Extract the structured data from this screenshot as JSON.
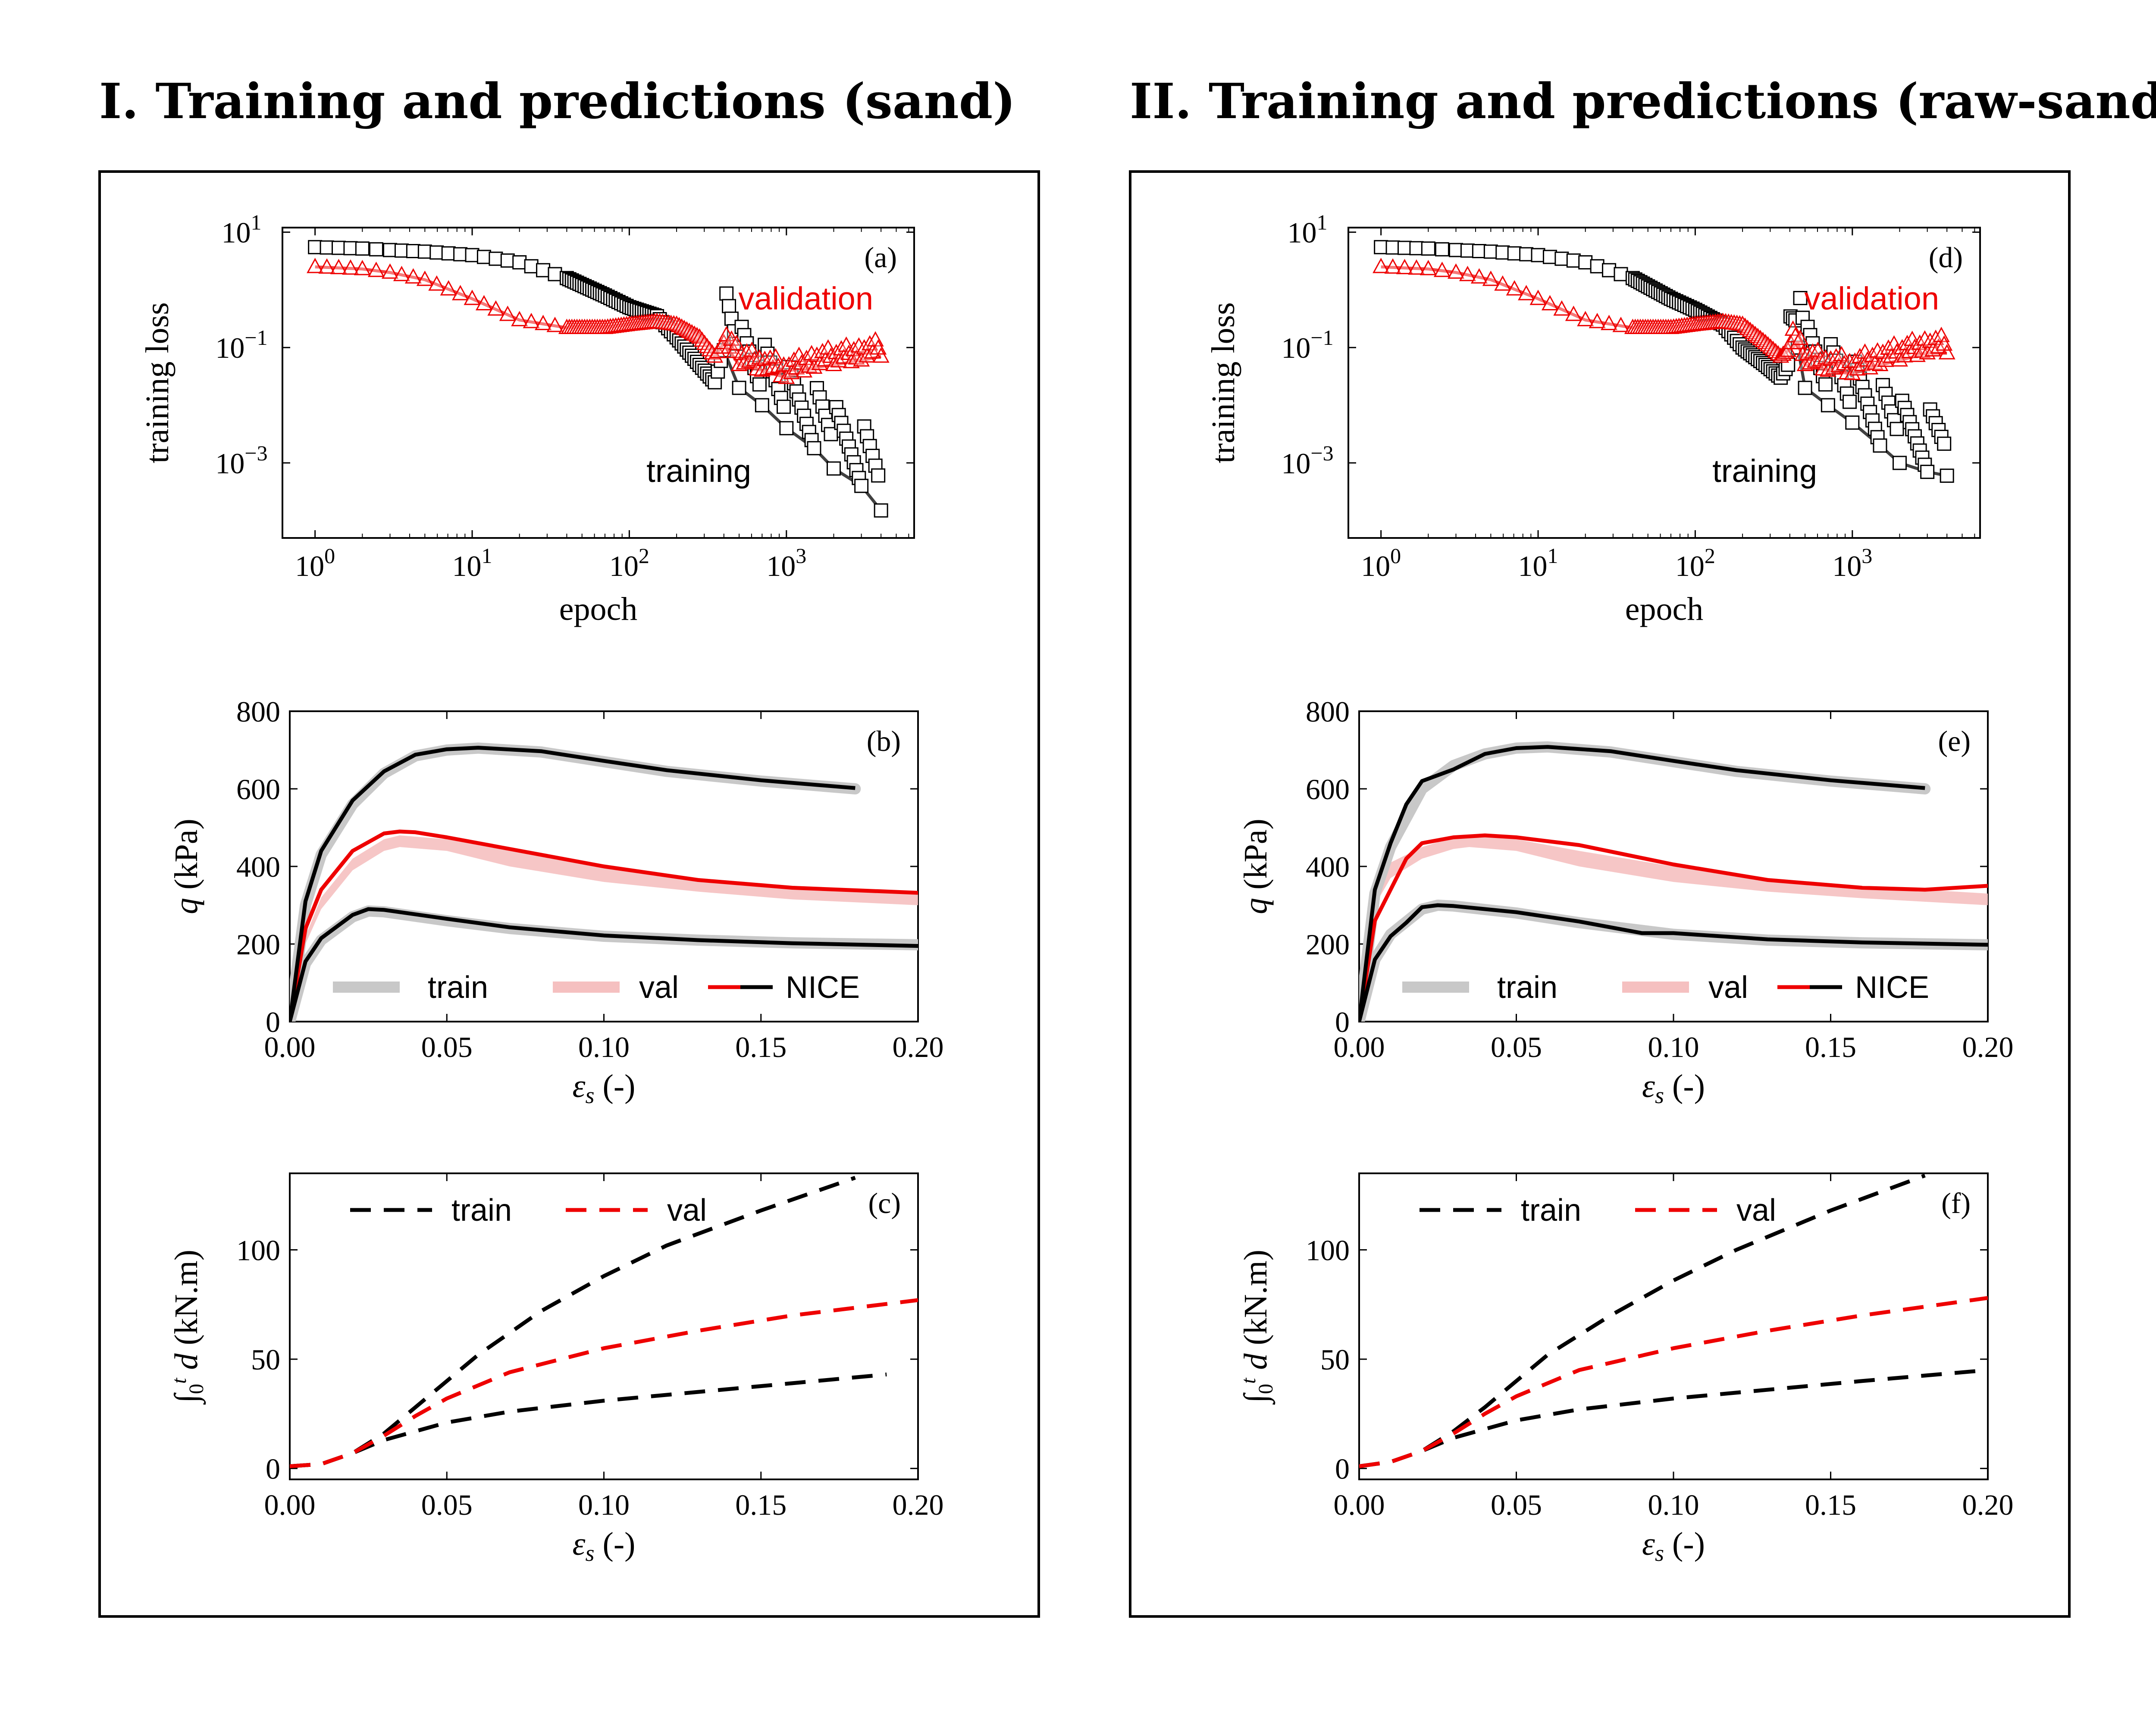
{
  "panels": [
    {
      "title": "I. Training and predictions (sand)"
    },
    {
      "title": "II. Training and predictions (raw-sand)"
    }
  ],
  "colors": {
    "black": "#000000",
    "red": "#ee0000",
    "gray_band": "#c8c8c8",
    "pink_band": "#f5c0c0"
  },
  "chart_data": [
    {
      "id": "a",
      "type": "line",
      "panel_label": "(a)",
      "xlabel": "epoch",
      "ylabel": "training loss",
      "xscale": "log",
      "yscale": "log",
      "xlim": [
        0.62,
        6500
      ],
      "ylim": [
        5e-05,
        12
      ],
      "x_ticks": [
        1,
        10,
        100,
        1000
      ],
      "x_tick_labels": [
        "10^0",
        "10^1",
        "10^2",
        "10^3"
      ],
      "y_ticks": [
        10,
        0.1,
        0.001
      ],
      "y_tick_labels": [
        "10^1",
        "10^-1",
        "10^-3"
      ],
      "annotations": {
        "validation": "validation",
        "training": "training"
      },
      "series": [
        {
          "key": "training",
          "color": "#000000",
          "marker": "square",
          "x": [
            1,
            2,
            3,
            5,
            10,
            20,
            40,
            70,
            100,
            150,
            200,
            280,
            350,
            400,
            500,
            700,
            1000,
            1500,
            2000,
            3000,
            4000
          ],
          "y": [
            5.5,
            5.2,
            4.9,
            4.6,
            4.0,
            3.0,
            1.6,
            0.8,
            0.5,
            0.35,
            0.15,
            0.05,
            0.025,
            0.09,
            0.02,
            0.01,
            0.004,
            0.0018,
            0.0008,
            0.0004,
            0.00015
          ]
        },
        {
          "key": "validation",
          "color": "#ee0000",
          "marker": "triangle",
          "x": [
            1,
            2,
            3,
            5,
            10,
            20,
            40,
            70,
            100,
            150,
            200,
            280,
            350,
            400,
            500,
            700,
            1000,
            1500,
            2000,
            3000,
            4000
          ],
          "y": [
            2.5,
            2.3,
            2.0,
            1.5,
            0.7,
            0.3,
            0.22,
            0.22,
            0.25,
            0.28,
            0.25,
            0.15,
            0.07,
            0.12,
            0.05,
            0.04,
            0.03,
            0.045,
            0.05,
            0.06,
            0.07
          ]
        }
      ]
    },
    {
      "id": "b",
      "type": "line",
      "panel_label": "(b)",
      "xlabel": "εs (-)",
      "ylabel": "q (kPa)",
      "xlim": [
        0,
        0.2
      ],
      "ylim": [
        0,
        800
      ],
      "x_ticks": [
        0,
        0.05,
        0.1,
        0.15,
        0.2
      ],
      "x_tick_labels": [
        "0.00",
        "0.05",
        "0.10",
        "0.15",
        "0.20"
      ],
      "y_ticks": [
        0,
        200,
        400,
        600,
        800
      ],
      "y_tick_labels": [
        "0",
        "200",
        "400",
        "600",
        "800"
      ],
      "legend": {
        "train": "train",
        "val": "val",
        "nice": "NICE"
      },
      "series": [
        {
          "key": "train-high",
          "role": "train",
          "x": [
            0,
            0.005,
            0.01,
            0.02,
            0.03,
            0.04,
            0.05,
            0.06,
            0.08,
            0.1,
            0.12,
            0.15,
            0.18
          ],
          "y": [
            0,
            300,
            430,
            560,
            640,
            685,
            700,
            705,
            695,
            670,
            645,
            620,
            600
          ]
        },
        {
          "key": "train-low",
          "role": "train",
          "x": [
            0,
            0.005,
            0.01,
            0.02,
            0.025,
            0.03,
            0.05,
            0.07,
            0.1,
            0.13,
            0.16,
            0.2
          ],
          "y": [
            0,
            150,
            210,
            270,
            285,
            283,
            260,
            240,
            220,
            210,
            203,
            198
          ]
        },
        {
          "key": "val-band-upper",
          "role": "val",
          "x": [
            0,
            0.005,
            0.01,
            0.02,
            0.03,
            0.035,
            0.05,
            0.07,
            0.1,
            0.13,
            0.16,
            0.2
          ],
          "y": [
            0,
            220,
            320,
            420,
            470,
            480,
            470,
            440,
            400,
            370,
            350,
            335
          ]
        },
        {
          "key": "val-band-lower",
          "role": "val",
          "x": [
            0,
            0.005,
            0.01,
            0.02,
            0.03,
            0.035,
            0.05,
            0.07,
            0.1,
            0.13,
            0.16,
            0.2
          ],
          "y": [
            0,
            200,
            290,
            390,
            440,
            450,
            440,
            400,
            360,
            335,
            315,
            300
          ]
        },
        {
          "key": "nice-red",
          "role": "nice",
          "color": "#ee0000",
          "x": [
            0,
            0.005,
            0.01,
            0.02,
            0.03,
            0.035,
            0.04,
            0.05,
            0.07,
            0.1,
            0.13,
            0.16,
            0.2
          ],
          "y": [
            0,
            240,
            340,
            440,
            485,
            490,
            488,
            475,
            445,
            400,
            365,
            345,
            332
          ]
        },
        {
          "key": "nice-black-high",
          "role": "nice",
          "color": "#000000",
          "x": [
            0,
            0.005,
            0.01,
            0.02,
            0.03,
            0.04,
            0.05,
            0.06,
            0.08,
            0.1,
            0.12,
            0.15,
            0.18
          ],
          "y": [
            0,
            310,
            440,
            570,
            645,
            688,
            702,
            706,
            697,
            672,
            648,
            622,
            602
          ]
        },
        {
          "key": "nice-black-low",
          "role": "nice",
          "color": "#000000",
          "x": [
            0,
            0.005,
            0.01,
            0.02,
            0.025,
            0.03,
            0.05,
            0.07,
            0.1,
            0.13,
            0.16,
            0.2
          ],
          "y": [
            0,
            155,
            215,
            275,
            290,
            288,
            265,
            243,
            222,
            210,
            202,
            195
          ]
        }
      ]
    },
    {
      "id": "c",
      "type": "line",
      "panel_label": "(c)",
      "xlabel": "εs (-)",
      "ylabel": "∫0t d (kN.m)",
      "xlim": [
        0,
        0.2
      ],
      "ylim": [
        -5,
        135
      ],
      "x_ticks": [
        0,
        0.05,
        0.1,
        0.15,
        0.2
      ],
      "x_tick_labels": [
        "0.00",
        "0.05",
        "0.10",
        "0.15",
        "0.20"
      ],
      "y_ticks": [
        0,
        50,
        100
      ],
      "y_tick_labels": [
        "0",
        "50",
        "100"
      ],
      "legend": {
        "train": "train",
        "val": "val"
      },
      "series": [
        {
          "key": "train-high",
          "role": "train",
          "color": "#000000",
          "x": [
            0,
            0.01,
            0.02,
            0.03,
            0.04,
            0.05,
            0.06,
            0.08,
            0.1,
            0.12,
            0.15,
            0.18
          ],
          "y": [
            1,
            2,
            7,
            16,
            28,
            40,
            52,
            72,
            88,
            102,
            118,
            133
          ]
        },
        {
          "key": "train-low",
          "role": "train",
          "color": "#000000",
          "x": [
            0,
            0.01,
            0.02,
            0.03,
            0.04,
            0.05,
            0.07,
            0.1,
            0.13,
            0.16,
            0.19
          ],
          "y": [
            1,
            2,
            7,
            13,
            17,
            21,
            26,
            31,
            35,
            39,
            43
          ]
        },
        {
          "key": "val",
          "role": "val",
          "color": "#ee0000",
          "x": [
            0,
            0.01,
            0.02,
            0.03,
            0.04,
            0.05,
            0.07,
            0.1,
            0.13,
            0.16,
            0.2
          ],
          "y": [
            1,
            2,
            7,
            15,
            24,
            32,
            44,
            55,
            63,
            70,
            77
          ]
        }
      ]
    },
    {
      "id": "d",
      "type": "line",
      "panel_label": "(d)",
      "xlabel": "epoch",
      "ylabel": "training loss",
      "xscale": "log",
      "yscale": "log",
      "xlim": [
        0.62,
        6500
      ],
      "ylim": [
        5e-05,
        12
      ],
      "x_ticks": [
        1,
        10,
        100,
        1000
      ],
      "x_tick_labels": [
        "10^0",
        "10^1",
        "10^2",
        "10^3"
      ],
      "y_ticks": [
        10,
        0.1,
        0.001
      ],
      "y_tick_labels": [
        "10^1",
        "10^-1",
        "10^-3"
      ],
      "annotations": {
        "validation": "validation",
        "training": "training"
      },
      "series": [
        {
          "key": "training",
          "color": "#000000",
          "marker": "square",
          "x": [
            1,
            2,
            3,
            5,
            10,
            20,
            40,
            70,
            100,
            150,
            200,
            280,
            350,
            450,
            500,
            700,
            1000,
            1500,
            2000,
            3000,
            4000
          ],
          "y": [
            5.5,
            5.2,
            4.9,
            4.6,
            4.0,
            3.0,
            1.6,
            0.7,
            0.45,
            0.25,
            0.1,
            0.05,
            0.03,
            0.1,
            0.02,
            0.01,
            0.005,
            0.002,
            0.001,
            0.0007,
            0.0006
          ]
        },
        {
          "key": "validation",
          "color": "#ee0000",
          "marker": "triangle",
          "x": [
            1,
            2,
            3,
            5,
            10,
            20,
            40,
            70,
            100,
            150,
            200,
            280,
            350,
            450,
            500,
            700,
            1000,
            1500,
            2000,
            3000,
            4000
          ],
          "y": [
            2.5,
            2.3,
            2.0,
            1.5,
            0.7,
            0.3,
            0.22,
            0.22,
            0.25,
            0.28,
            0.25,
            0.12,
            0.07,
            0.12,
            0.05,
            0.04,
            0.035,
            0.05,
            0.06,
            0.08,
            0.08
          ]
        }
      ]
    },
    {
      "id": "e",
      "type": "line",
      "panel_label": "(e)",
      "xlabel": "εs (-)",
      "ylabel": "q (kPa)",
      "xlim": [
        0,
        0.2
      ],
      "ylim": [
        0,
        800
      ],
      "x_ticks": [
        0,
        0.05,
        0.1,
        0.15,
        0.2
      ],
      "x_tick_labels": [
        "0.00",
        "0.05",
        "0.10",
        "0.15",
        "0.20"
      ],
      "y_ticks": [
        0,
        200,
        400,
        600,
        800
      ],
      "y_tick_labels": [
        "0",
        "200",
        "400",
        "600",
        "800"
      ],
      "legend": {
        "train": "train",
        "val": "val",
        "nice": "NICE"
      },
      "series": [
        {
          "key": "train-high",
          "role": "train",
          "x": [
            0,
            0.005,
            0.01,
            0.02,
            0.03,
            0.04,
            0.05,
            0.06,
            0.08,
            0.1,
            0.12,
            0.15,
            0.18
          ],
          "y": [
            0,
            330,
            450,
            600,
            660,
            690,
            705,
            708,
            695,
            670,
            645,
            620,
            600
          ]
        },
        {
          "key": "train-low",
          "role": "train",
          "x": [
            0,
            0.005,
            0.01,
            0.02,
            0.025,
            0.03,
            0.05,
            0.07,
            0.1,
            0.13,
            0.16,
            0.2
          ],
          "y": [
            0,
            160,
            225,
            290,
            300,
            298,
            280,
            255,
            225,
            210,
            203,
            198
          ]
        },
        {
          "key": "val-band-upper",
          "role": "val",
          "x": [
            0,
            0.005,
            0.01,
            0.02,
            0.03,
            0.035,
            0.05,
            0.07,
            0.1,
            0.13,
            0.16,
            0.2
          ],
          "y": [
            0,
            350,
            410,
            450,
            475,
            480,
            470,
            440,
            400,
            370,
            350,
            330
          ]
        },
        {
          "key": "val-band-lower",
          "role": "val",
          "x": [
            0,
            0.005,
            0.01,
            0.02,
            0.03,
            0.035,
            0.05,
            0.07,
            0.1,
            0.13,
            0.16,
            0.2
          ],
          "y": [
            0,
            300,
            370,
            420,
            445,
            450,
            440,
            400,
            360,
            335,
            318,
            300
          ]
        },
        {
          "key": "nice-red",
          "role": "nice",
          "color": "#ee0000",
          "x": [
            0,
            0.005,
            0.01,
            0.015,
            0.02,
            0.03,
            0.04,
            0.05,
            0.07,
            0.1,
            0.13,
            0.16,
            0.18,
            0.2
          ],
          "y": [
            0,
            260,
            340,
            420,
            460,
            475,
            480,
            475,
            455,
            405,
            365,
            345,
            340,
            350
          ]
        },
        {
          "key": "nice-black-high",
          "role": "nice",
          "color": "#000000",
          "x": [
            0,
            0.005,
            0.01,
            0.015,
            0.02,
            0.03,
            0.04,
            0.05,
            0.06,
            0.08,
            0.1,
            0.12,
            0.15,
            0.18
          ],
          "y": [
            0,
            340,
            460,
            560,
            620,
            650,
            690,
            705,
            708,
            697,
            672,
            648,
            622,
            602
          ]
        },
        {
          "key": "nice-black-low",
          "role": "nice",
          "color": "#000000",
          "x": [
            0,
            0.005,
            0.01,
            0.015,
            0.02,
            0.025,
            0.03,
            0.05,
            0.07,
            0.09,
            0.1,
            0.13,
            0.16,
            0.2
          ],
          "y": [
            0,
            160,
            220,
            255,
            295,
            300,
            298,
            282,
            258,
            228,
            228,
            212,
            204,
            198
          ]
        }
      ]
    },
    {
      "id": "f",
      "type": "line",
      "panel_label": "(f)",
      "xlabel": "εs (-)",
      "ylabel": "∫0t d (kN.m)",
      "xlim": [
        0,
        0.2
      ],
      "ylim": [
        -5,
        135
      ],
      "x_ticks": [
        0,
        0.05,
        0.1,
        0.15,
        0.2
      ],
      "x_tick_labels": [
        "0.00",
        "0.05",
        "0.10",
        "0.15",
        "0.20"
      ],
      "y_ticks": [
        0,
        50,
        100
      ],
      "y_tick_labels": [
        "0",
        "50",
        "100"
      ],
      "legend": {
        "train": "train",
        "val": "val"
      },
      "series": [
        {
          "key": "train-high",
          "role": "train",
          "color": "#000000",
          "x": [
            0,
            0.01,
            0.02,
            0.03,
            0.04,
            0.05,
            0.06,
            0.08,
            0.1,
            0.12,
            0.15,
            0.18
          ],
          "y": [
            1,
            3,
            8,
            17,
            28,
            40,
            52,
            70,
            86,
            100,
            118,
            134
          ]
        },
        {
          "key": "train-low",
          "role": "train",
          "color": "#000000",
          "x": [
            0,
            0.01,
            0.02,
            0.03,
            0.04,
            0.05,
            0.07,
            0.1,
            0.13,
            0.16,
            0.2
          ],
          "y": [
            1,
            3,
            8,
            14,
            18,
            22,
            27,
            32,
            36,
            40,
            45
          ]
        },
        {
          "key": "val",
          "role": "val",
          "color": "#ee0000",
          "x": [
            0,
            0.01,
            0.02,
            0.03,
            0.04,
            0.05,
            0.07,
            0.1,
            0.13,
            0.16,
            0.2
          ],
          "y": [
            1,
            3,
            8,
            16,
            25,
            33,
            45,
            55,
            63,
            70,
            78
          ]
        }
      ]
    }
  ]
}
